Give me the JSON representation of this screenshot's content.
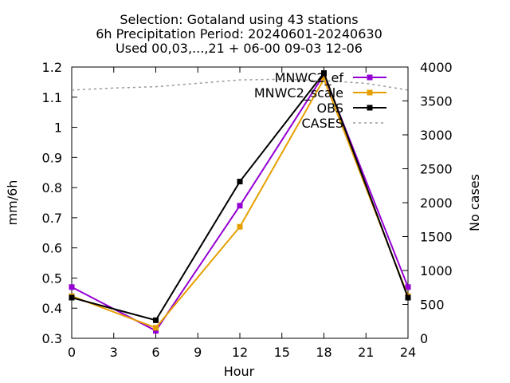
{
  "chart_data": {
    "type": "line",
    "title_lines": [
      "Selection: Gotaland using    43 stations",
      "6h Precipitation   Period: 20240601-20240630",
      "Used 00,03,...,21 + 06-00 09-03 12-06"
    ],
    "xlabel": "Hour",
    "ylabel": "mm/6h",
    "y2label": "No cases",
    "xlim": [
      0,
      24
    ],
    "ylim": [
      0.3,
      1.2
    ],
    "y2lim": [
      0,
      4000
    ],
    "xticks": [
      "0",
      "3",
      "6",
      "9",
      "12",
      "15",
      "18",
      "21",
      "24"
    ],
    "yticks": [
      "0.3",
      "0.4",
      "0.5",
      "0.6",
      "0.7",
      "0.8",
      "0.9",
      "1",
      "1.1",
      "1.2"
    ],
    "y2ticks": [
      "0",
      "500",
      "1000",
      "1500",
      "2000",
      "2500",
      "3000",
      "3500",
      "4000"
    ],
    "legend_position": "top-right",
    "series": [
      {
        "name": "MNWC2_ef",
        "color": "#9400d3",
        "axis": "y",
        "x": [
          0,
          6,
          12,
          18,
          24
        ],
        "values": [
          0.47,
          0.325,
          0.74,
          1.175,
          0.47
        ]
      },
      {
        "name": "MNWC2_scale",
        "color": "#e69f00",
        "axis": "y",
        "x": [
          0,
          6,
          12,
          18,
          24
        ],
        "values": [
          0.44,
          0.335,
          0.67,
          1.16,
          0.44
        ]
      },
      {
        "name": "OBS",
        "color": "#000000",
        "axis": "y",
        "x": [
          0,
          6,
          12,
          18,
          24
        ],
        "values": [
          0.435,
          0.36,
          0.82,
          1.18,
          0.435
        ]
      },
      {
        "name": "CASES",
        "color": "#999999",
        "axis": "y2",
        "dashed": true,
        "x": [
          0,
          3,
          6,
          9,
          12,
          15,
          18,
          21,
          24
        ],
        "values": [
          3660,
          3690,
          3710,
          3760,
          3810,
          3820,
          3800,
          3760,
          3660
        ]
      }
    ]
  }
}
